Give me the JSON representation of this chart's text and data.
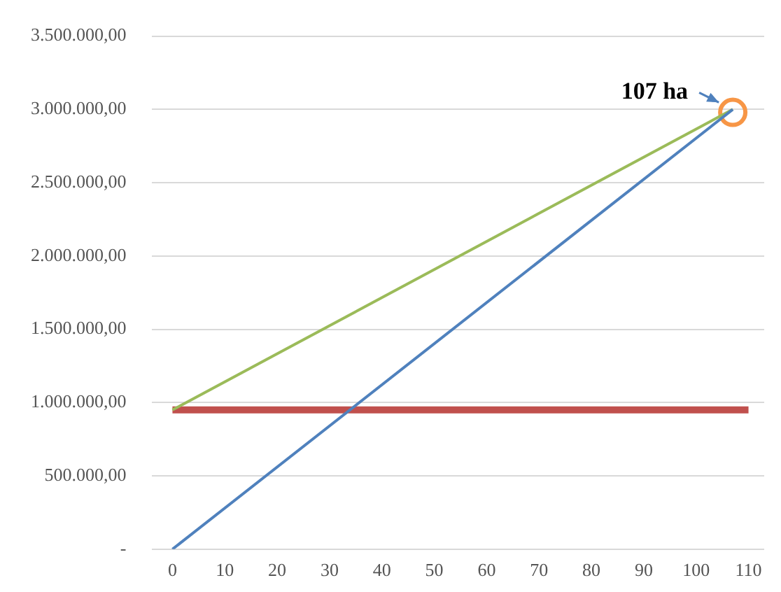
{
  "chart_data": {
    "type": "line",
    "x": [
      0,
      107
    ],
    "series": [
      {
        "color": "#4f81bd",
        "values": [
          0,
          3000000
        ]
      },
      {
        "color": "#9bbb59",
        "values": [
          950000,
          3000000
        ]
      },
      {
        "color": "#c0504d",
        "x": [
          0,
          110
        ],
        "values": [
          950000,
          950000
        ]
      },
      {
        "type": "scatter",
        "color": "#f79646",
        "x": [
          107
        ],
        "values": [
          2980000
        ],
        "marker": "circle"
      }
    ],
    "xlim": [
      -4,
      113
    ],
    "xticks": [
      0,
      10,
      20,
      30,
      40,
      50,
      60,
      70,
      80,
      90,
      100,
      110
    ],
    "ylim": [
      0,
      3500000
    ],
    "yticks": [
      {
        "value": 0,
        "label": "-"
      },
      {
        "value": 500000,
        "label": "500.000,00"
      },
      {
        "value": 1000000,
        "label": "1.000.000,00"
      },
      {
        "value": 1500000,
        "label": "1.500.000,00"
      },
      {
        "value": 2000000,
        "label": "2.000.000,00"
      },
      {
        "value": 2500000,
        "label": "2.500.000,00"
      },
      {
        "value": 3000000,
        "label": "3.000.000,00"
      },
      {
        "value": 3500000,
        "label": "3.500.000,00"
      }
    ],
    "grid": "y",
    "legend": false,
    "marker": "none",
    "annotations": [
      {
        "text": "107 ha",
        "x": 107,
        "y": 3000000
      }
    ]
  }
}
